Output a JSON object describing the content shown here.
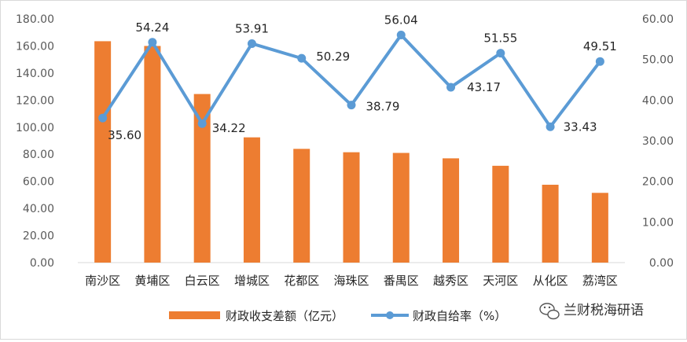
{
  "chart_data": {
    "type": "bar+line",
    "categories": [
      "南沙区",
      "黄埔区",
      "白云区",
      "增城区",
      "花都区",
      "海珠区",
      "番禺区",
      "越秀区",
      "天河区",
      "从化区",
      "荔湾区"
    ],
    "series": [
      {
        "name": "财政收支差额（亿元）",
        "type": "bar",
        "axis": "left",
        "color": "#ED7D31",
        "values": [
          163.5,
          160.0,
          124.5,
          92.5,
          84.0,
          81.5,
          81.0,
          77.0,
          71.5,
          57.5,
          51.5
        ]
      },
      {
        "name": "财政自给率（%）",
        "type": "line",
        "axis": "right",
        "color": "#5B9BD5",
        "values": [
          35.6,
          54.24,
          34.22,
          53.91,
          50.29,
          38.79,
          56.04,
          43.17,
          51.55,
          33.43,
          49.51
        ],
        "labels": [
          "35.60",
          "54.24",
          "34.22",
          "53.91",
          "50.29",
          "38.79",
          "56.04",
          "43.17",
          "51.55",
          "33.43",
          "49.51"
        ]
      }
    ],
    "y_left": {
      "min": 0,
      "max": 180,
      "step": 20,
      "ticks": [
        "0.00",
        "20.00",
        "40.00",
        "60.00",
        "80.00",
        "100.00",
        "120.00",
        "140.00",
        "160.00",
        "180.00"
      ]
    },
    "y_right": {
      "min": 0,
      "max": 60,
      "step": 10,
      "ticks": [
        "0.00",
        "10.00",
        "20.00",
        "30.00",
        "40.00",
        "50.00",
        "60.00"
      ]
    },
    "grid": false,
    "legend_position": "bottom"
  },
  "watermark": {
    "icon": "wechat-icon",
    "text": "兰财税海研语"
  }
}
